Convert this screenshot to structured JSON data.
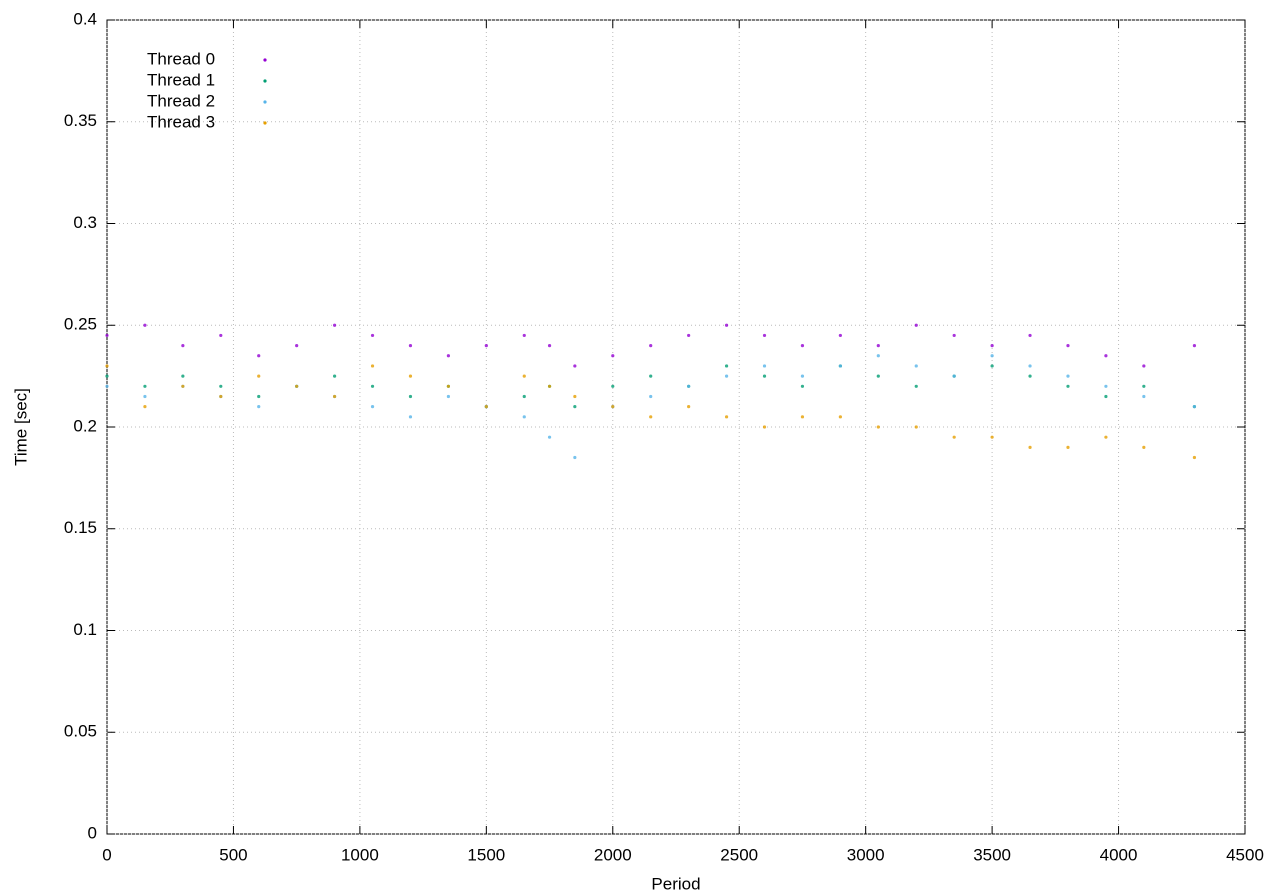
{
  "chart_data": {
    "type": "scatter",
    "x_label": "Period",
    "y_label": "Time [sec]",
    "x": [
      0,
      150,
      300,
      450,
      600,
      750,
      900,
      1050,
      1200,
      1350,
      1500,
      1650,
      1750,
      1850,
      2000,
      2150,
      2300,
      2450,
      2600,
      2750,
      2900,
      3050,
      3200,
      3350,
      3500,
      3650,
      3800,
      3950,
      4100,
      4300
    ],
    "series": [
      {
        "name": "Thread 0",
        "color": "#9400d3",
        "values": [
          0.245,
          0.25,
          0.24,
          0.245,
          0.235,
          0.24,
          0.25,
          0.245,
          0.24,
          0.235,
          0.24,
          0.245,
          0.24,
          0.23,
          0.235,
          0.24,
          0.245,
          0.25,
          0.245,
          0.24,
          0.245,
          0.24,
          0.25,
          0.245,
          0.24,
          0.245,
          0.24,
          0.235,
          0.23,
          0.24
        ]
      },
      {
        "name": "Thread 1",
        "color": "#009e73",
        "values": [
          0.225,
          0.22,
          0.225,
          0.22,
          0.215,
          0.22,
          0.225,
          0.22,
          0.215,
          0.22,
          0.21,
          0.215,
          0.22,
          0.21,
          0.22,
          0.225,
          0.22,
          0.23,
          0.225,
          0.22,
          0.23,
          0.225,
          0.22,
          0.225,
          0.23,
          0.225,
          0.22,
          0.215,
          0.22,
          0.21
        ]
      },
      {
        "name": "Thread 2",
        "color": "#56b4e9",
        "values": [
          0.22,
          0.215,
          0.22,
          0.215,
          0.21,
          0.22,
          0.215,
          0.21,
          0.205,
          0.215,
          0.21,
          0.205,
          0.195,
          0.185,
          0.21,
          0.215,
          0.22,
          0.225,
          0.23,
          0.225,
          0.23,
          0.235,
          0.23,
          0.225,
          0.235,
          0.23,
          0.225,
          0.22,
          0.215,
          0.21
        ]
      },
      {
        "name": "Thread 3",
        "color": "#e69f00",
        "values": [
          0.23,
          0.21,
          0.22,
          0.215,
          0.225,
          0.22,
          0.215,
          0.23,
          0.225,
          0.22,
          0.21,
          0.225,
          0.22,
          0.215,
          0.21,
          0.205,
          0.21,
          0.205,
          0.2,
          0.205,
          0.205,
          0.2,
          0.2,
          0.195,
          0.195,
          0.19,
          0.19,
          0.195,
          0.19,
          0.185
        ]
      }
    ],
    "xlim": [
      0,
      4500
    ],
    "xticks": [
      0,
      500,
      1000,
      1500,
      2000,
      2500,
      3000,
      3500,
      4000,
      4500
    ],
    "ylim": [
      0,
      0.4
    ],
    "yticks": [
      0,
      0.05,
      0.1,
      0.15,
      0.2,
      0.25,
      0.3,
      0.35,
      0.4
    ],
    "grid": true,
    "legend": "top-left"
  }
}
